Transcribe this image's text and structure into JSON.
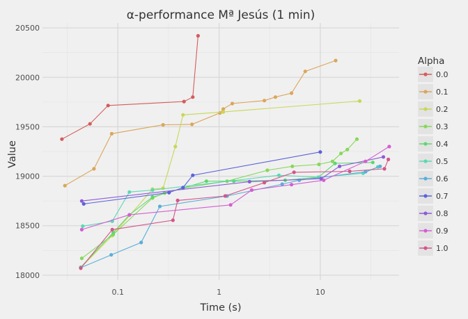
{
  "chart_data": {
    "type": "line",
    "title": "α-performance Mª Jesús (1 min)",
    "xlabel": "Time (s)",
    "ylabel": "Value",
    "x_scale": "log",
    "xlim": [
      0.018,
      60
    ],
    "ylim": [
      17950,
      20550
    ],
    "x_ticks": [
      0.1,
      1,
      10
    ],
    "x_tick_labels": [
      "0.1",
      "1",
      "10"
    ],
    "y_ticks": [
      18000,
      18500,
      19000,
      19500,
      20000,
      20500
    ],
    "y_tick_labels": [
      "18000",
      "18500",
      "19000",
      "19500",
      "20000",
      "20500"
    ],
    "grid": true,
    "legend_title": "Alpha",
    "legend_position": "right",
    "series": [
      {
        "name": "0.0",
        "color": "#d45b5b",
        "points": [
          [
            0.028,
            19375
          ],
          [
            0.053,
            19530
          ],
          [
            0.08,
            19715
          ],
          [
            0.45,
            19755
          ],
          [
            0.55,
            19800
          ],
          [
            0.62,
            20420
          ]
        ]
      },
      {
        "name": "0.1",
        "color": "#dba65a",
        "points": [
          [
            0.03,
            18905
          ],
          [
            0.058,
            19075
          ],
          [
            0.087,
            19430
          ],
          [
            0.28,
            19520
          ],
          [
            0.54,
            19525
          ],
          [
            1.02,
            19640
          ],
          [
            1.1,
            19680
          ],
          [
            1.35,
            19735
          ],
          [
            2.8,
            19765
          ],
          [
            3.6,
            19800
          ],
          [
            5.2,
            19840
          ],
          [
            7.1,
            20060
          ],
          [
            14.2,
            20170
          ]
        ]
      },
      {
        "name": "0.2",
        "color": "#c7d854",
        "points": [
          [
            0.043,
            18075
          ],
          [
            0.088,
            18400
          ],
          [
            0.22,
            18870
          ],
          [
            0.28,
            18880
          ],
          [
            0.37,
            19300
          ],
          [
            0.44,
            19620
          ],
          [
            1.1,
            19650
          ],
          [
            24.5,
            19760
          ]
        ]
      },
      {
        "name": "0.3",
        "color": "#86d859",
        "points": [
          [
            0.044,
            18170
          ],
          [
            0.09,
            18410
          ],
          [
            0.22,
            18780
          ],
          [
            0.29,
            18830
          ],
          [
            0.44,
            18880
          ],
          [
            1.2,
            18950
          ],
          [
            3.0,
            19060
          ],
          [
            5.3,
            19100
          ],
          [
            9.7,
            19120
          ],
          [
            13.2,
            19150
          ],
          [
            16.0,
            19230
          ],
          [
            18.5,
            19270
          ],
          [
            23.0,
            19375
          ]
        ]
      },
      {
        "name": "0.4",
        "color": "#5ed86f",
        "points": [
          [
            0.043,
            18080
          ],
          [
            0.09,
            18430
          ],
          [
            0.13,
            18610
          ],
          [
            0.22,
            18790
          ],
          [
            0.75,
            18950
          ],
          [
            1.4,
            18950
          ],
          [
            4.5,
            18960
          ],
          [
            9.6,
            18990
          ],
          [
            14.0,
            19130
          ],
          [
            33.0,
            19140
          ]
        ]
      },
      {
        "name": "0.5",
        "color": "#5bd8b4",
        "points": [
          [
            0.045,
            18495
          ],
          [
            0.088,
            18545
          ],
          [
            0.13,
            18840
          ],
          [
            0.22,
            18860
          ],
          [
            3.9,
            19010
          ],
          [
            9.8,
            18990
          ],
          [
            26.5,
            19030
          ],
          [
            37.0,
            19095
          ]
        ]
      },
      {
        "name": "0.6",
        "color": "#5aaed8",
        "points": [
          [
            0.043,
            18075
          ],
          [
            0.086,
            18205
          ],
          [
            0.17,
            18330
          ],
          [
            0.26,
            18695
          ],
          [
            1.2,
            18800
          ],
          [
            4.2,
            18920
          ],
          [
            6.2,
            18960
          ],
          [
            28.0,
            19045
          ],
          [
            39.0,
            19100
          ]
        ]
      },
      {
        "name": "0.7",
        "color": "#5b62d8",
        "points": [
          [
            0.046,
            18720
          ],
          [
            0.32,
            18835
          ],
          [
            0.44,
            18885
          ],
          [
            0.55,
            19010
          ],
          [
            10.0,
            19245
          ]
        ]
      },
      {
        "name": "0.8",
        "color": "#8c5bd8",
        "points": [
          [
            0.044,
            18750
          ],
          [
            2.0,
            18945
          ],
          [
            10.2,
            18975
          ],
          [
            15.5,
            19100
          ],
          [
            42.0,
            19195
          ]
        ]
      },
      {
        "name": "0.9",
        "color": "#d45ed1",
        "points": [
          [
            0.044,
            18460
          ],
          [
            0.13,
            18610
          ],
          [
            1.3,
            18710
          ],
          [
            2.1,
            18860
          ],
          [
            5.2,
            18915
          ],
          [
            10.8,
            18960
          ],
          [
            28.0,
            19150
          ],
          [
            48.0,
            19300
          ]
        ]
      },
      {
        "name": "1.0",
        "color": "#d4558a",
        "points": [
          [
            0.043,
            18070
          ],
          [
            0.088,
            18460
          ],
          [
            0.35,
            18555
          ],
          [
            0.39,
            18755
          ],
          [
            1.15,
            18800
          ],
          [
            2.8,
            18935
          ],
          [
            5.5,
            19040
          ],
          [
            19.5,
            19050
          ],
          [
            43.0,
            19075
          ],
          [
            47.0,
            19170
          ]
        ]
      }
    ]
  }
}
